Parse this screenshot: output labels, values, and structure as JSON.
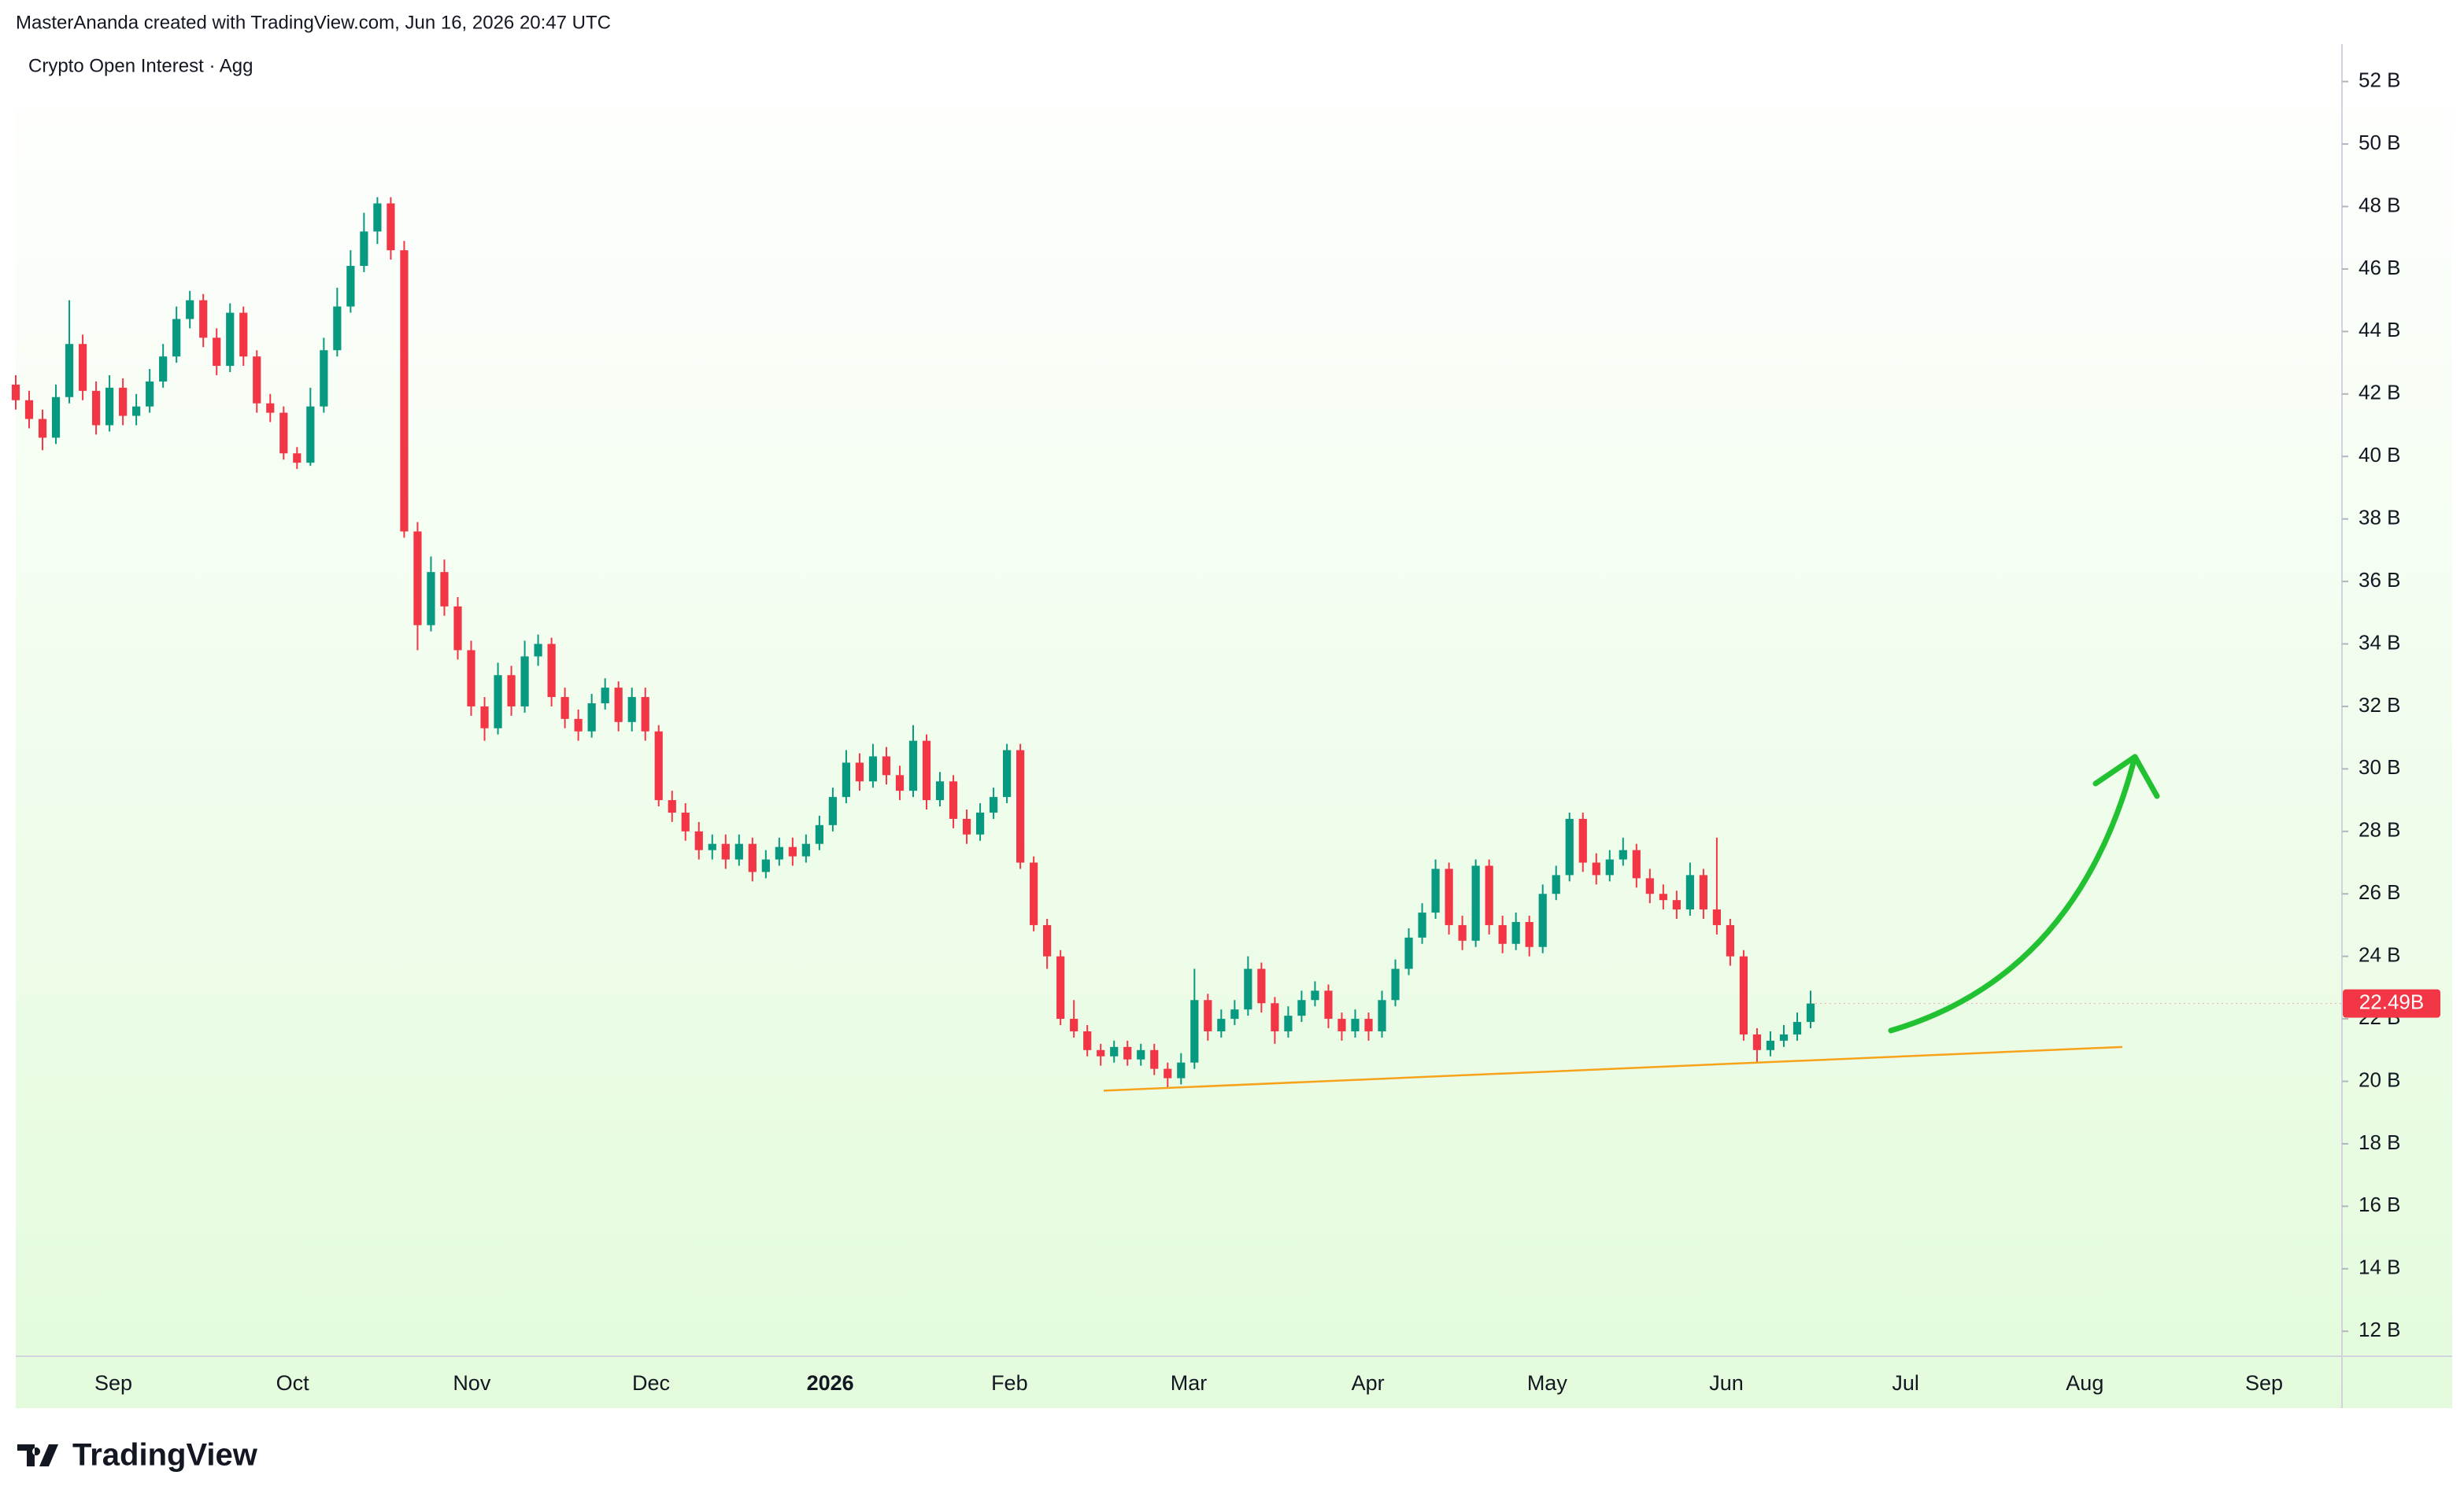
{
  "header": "MasterAnanda created with TradingView.com, Jun 16, 2026 20:47 UTC",
  "footer_logo": "TradingView",
  "chart_data": {
    "type": "candlestick",
    "title": "Crypto Open Interest · Agg",
    "up_color": "#089981",
    "down_color": "#f23645",
    "categories": [
      "Sep",
      "Oct",
      "Nov",
      "Dec",
      "2026",
      "Feb",
      "Mar",
      "Apr",
      "May",
      "Jun",
      "Jul",
      "Aug",
      "Sep"
    ],
    "ylim": [
      11.2,
      53.2
    ],
    "yticks": [
      {
        "value": 12,
        "label": "12 B"
      },
      {
        "value": 14,
        "label": "14 B"
      },
      {
        "value": 16,
        "label": "16 B"
      },
      {
        "value": 18,
        "label": "18 B"
      },
      {
        "value": 20,
        "label": "20 B"
      },
      {
        "value": 22,
        "label": "22 B"
      },
      {
        "value": 24,
        "label": "24 B"
      },
      {
        "value": 26,
        "label": "26 B"
      },
      {
        "value": 28,
        "label": "28 B"
      },
      {
        "value": 30,
        "label": "30 B"
      },
      {
        "value": 32,
        "label": "32 B"
      },
      {
        "value": 34,
        "label": "34 B"
      },
      {
        "value": 36,
        "label": "36 B"
      },
      {
        "value": 38,
        "label": "38 B"
      },
      {
        "value": 40,
        "label": "40 B"
      },
      {
        "value": 42,
        "label": "42 B"
      },
      {
        "value": 44,
        "label": "44 B"
      },
      {
        "value": 46,
        "label": "46 B"
      },
      {
        "value": 48,
        "label": "48 B"
      },
      {
        "value": 50,
        "label": "50 B"
      },
      {
        "value": 52,
        "label": "52 B"
      }
    ],
    "last_value_label": "22.49B",
    "trendline": {
      "color": "#f7a21b",
      "values": [
        19.7,
        21.1
      ]
    },
    "open": [
      42.3,
      41.8,
      41.2,
      40.6,
      41.9,
      43.6,
      42.1,
      41.0,
      42.2,
      41.3,
      41.6,
      42.4,
      43.2,
      44.4,
      45.0,
      43.8,
      42.9,
      44.6,
      43.2,
      41.7,
      41.4,
      40.1,
      39.8,
      41.6,
      43.4,
      44.8,
      46.1,
      47.2,
      48.1,
      46.6,
      37.6,
      34.6,
      36.3,
      35.2,
      33.8,
      32.0,
      31.3,
      33.0,
      32.0,
      33.6,
      34.0,
      32.3,
      31.6,
      31.2,
      32.1,
      32.6,
      31.5,
      32.3,
      31.2,
      29.0,
      28.6,
      28.0,
      27.4,
      27.6,
      27.1,
      27.6,
      26.7,
      27.1,
      27.5,
      27.2,
      27.6,
      28.2,
      29.1,
      30.2,
      29.6,
      30.4,
      29.8,
      29.3,
      30.9,
      29.0,
      29.6,
      28.4,
      27.9,
      28.6,
      29.1,
      30.6,
      27.0,
      25.0,
      24.0,
      22.0,
      21.6,
      21.0,
      20.8,
      21.1,
      20.7,
      21.0,
      20.4,
      20.1,
      20.6,
      22.6,
      21.6,
      22.0,
      22.3,
      23.6,
      22.5,
      21.6,
      22.1,
      22.6,
      22.9,
      22.0,
      21.6,
      22.0,
      21.6,
      22.6,
      23.6,
      24.6,
      25.4,
      26.8,
      25.0,
      24.5,
      26.9,
      25.0,
      24.4,
      25.1,
      24.3,
      26.0,
      26.6,
      28.4,
      27.0,
      26.6,
      27.1,
      27.4,
      26.5,
      26.0,
      25.8,
      25.5,
      26.6,
      25.5,
      25.0,
      24.0,
      21.5,
      21.0,
      21.3,
      21.5,
      21.9
    ],
    "high": [
      42.6,
      42.1,
      41.5,
      42.3,
      45.0,
      43.9,
      42.4,
      42.6,
      42.5,
      42.0,
      42.8,
      43.6,
      44.8,
      45.3,
      45.2,
      44.1,
      44.9,
      44.8,
      43.4,
      42.0,
      41.6,
      40.3,
      42.2,
      43.8,
      45.4,
      46.6,
      47.8,
      48.3,
      48.3,
      46.9,
      37.9,
      36.8,
      36.7,
      35.5,
      34.1,
      32.3,
      33.4,
      33.3,
      34.1,
      34.3,
      34.2,
      32.6,
      31.9,
      32.4,
      32.9,
      32.8,
      32.6,
      32.6,
      31.4,
      29.3,
      28.9,
      28.3,
      27.9,
      27.9,
      27.9,
      27.8,
      27.4,
      27.8,
      27.8,
      27.9,
      28.5,
      29.4,
      30.6,
      30.5,
      30.8,
      30.7,
      30.1,
      31.4,
      31.1,
      29.9,
      29.8,
      28.7,
      28.9,
      29.4,
      30.8,
      30.8,
      27.2,
      25.2,
      24.2,
      22.6,
      21.8,
      21.2,
      21.3,
      21.3,
      21.2,
      21.2,
      20.6,
      20.9,
      23.6,
      22.8,
      22.3,
      22.6,
      24.0,
      23.8,
      22.7,
      22.4,
      22.9,
      23.2,
      23.1,
      22.2,
      22.3,
      22.2,
      22.9,
      23.9,
      24.9,
      25.7,
      27.1,
      27.0,
      25.3,
      27.1,
      27.1,
      25.3,
      25.4,
      25.3,
      26.3,
      26.9,
      28.6,
      28.6,
      27.3,
      27.4,
      27.8,
      27.6,
      26.8,
      26.3,
      26.1,
      27.0,
      26.8,
      27.8,
      25.2,
      24.2,
      21.7,
      21.6,
      21.8,
      22.2,
      22.9
    ],
    "low": [
      41.5,
      40.9,
      40.2,
      40.4,
      41.7,
      41.8,
      40.7,
      40.8,
      41.0,
      41.0,
      41.4,
      42.2,
      43.0,
      44.1,
      43.5,
      42.6,
      42.7,
      42.9,
      41.4,
      41.1,
      39.9,
      39.6,
      39.7,
      41.4,
      43.2,
      44.6,
      45.9,
      46.8,
      46.3,
      37.4,
      33.8,
      34.4,
      34.9,
      33.5,
      31.7,
      30.9,
      31.1,
      31.7,
      31.8,
      33.3,
      32.0,
      31.3,
      30.9,
      31.0,
      31.9,
      31.2,
      31.2,
      30.9,
      28.8,
      28.3,
      27.7,
      27.1,
      27.1,
      26.8,
      26.9,
      26.4,
      26.5,
      26.9,
      26.9,
      27.0,
      27.4,
      28.0,
      28.9,
      29.3,
      29.4,
      29.5,
      29.0,
      29.1,
      28.7,
      28.8,
      28.1,
      27.6,
      27.7,
      28.4,
      28.9,
      26.8,
      24.8,
      23.6,
      21.8,
      21.4,
      20.8,
      20.5,
      20.6,
      20.5,
      20.5,
      20.2,
      19.8,
      19.9,
      20.4,
      21.3,
      21.4,
      21.8,
      22.1,
      22.2,
      21.2,
      21.4,
      21.9,
      22.4,
      21.7,
      21.3,
      21.4,
      21.3,
      21.4,
      22.4,
      23.4,
      24.4,
      25.2,
      24.7,
      24.2,
      24.3,
      24.7,
      24.1,
      24.2,
      24.0,
      24.1,
      25.8,
      26.4,
      26.7,
      26.3,
      26.4,
      26.9,
      26.2,
      25.7,
      25.5,
      25.2,
      25.3,
      25.2,
      24.7,
      23.7,
      21.3,
      20.6,
      20.8,
      21.1,
      21.3,
      21.7
    ],
    "close": [
      41.8,
      41.2,
      40.6,
      41.9,
      43.6,
      42.1,
      41.0,
      42.2,
      41.3,
      41.6,
      42.4,
      43.2,
      44.4,
      45.0,
      43.8,
      42.9,
      44.6,
      43.2,
      41.7,
      41.4,
      40.1,
      39.8,
      41.6,
      43.4,
      44.8,
      46.1,
      47.2,
      48.1,
      46.6,
      37.6,
      34.6,
      36.3,
      35.2,
      33.8,
      32.0,
      31.3,
      33.0,
      32.0,
      33.6,
      34.0,
      32.3,
      31.6,
      31.2,
      32.1,
      32.6,
      31.5,
      32.3,
      31.2,
      29.0,
      28.6,
      28.0,
      27.4,
      27.6,
      27.1,
      27.6,
      26.7,
      27.1,
      27.5,
      27.2,
      27.6,
      28.2,
      29.1,
      30.2,
      29.6,
      30.4,
      29.8,
      29.3,
      30.9,
      29.0,
      29.6,
      28.4,
      27.9,
      28.6,
      29.1,
      30.6,
      27.0,
      25.0,
      24.0,
      22.0,
      21.6,
      21.0,
      20.8,
      21.1,
      20.7,
      21.0,
      20.4,
      20.1,
      20.6,
      22.6,
      21.6,
      22.0,
      22.3,
      23.6,
      22.5,
      21.6,
      22.1,
      22.6,
      22.9,
      22.0,
      21.6,
      22.0,
      21.6,
      22.6,
      23.6,
      24.6,
      25.4,
      26.8,
      25.0,
      24.5,
      26.9,
      25.0,
      24.4,
      25.1,
      24.3,
      26.0,
      26.6,
      28.4,
      27.0,
      26.6,
      27.1,
      27.4,
      26.5,
      26.0,
      25.8,
      25.5,
      26.6,
      25.5,
      25.0,
      24.0,
      21.5,
      21.0,
      21.3,
      21.5,
      21.9,
      22.49
    ]
  }
}
